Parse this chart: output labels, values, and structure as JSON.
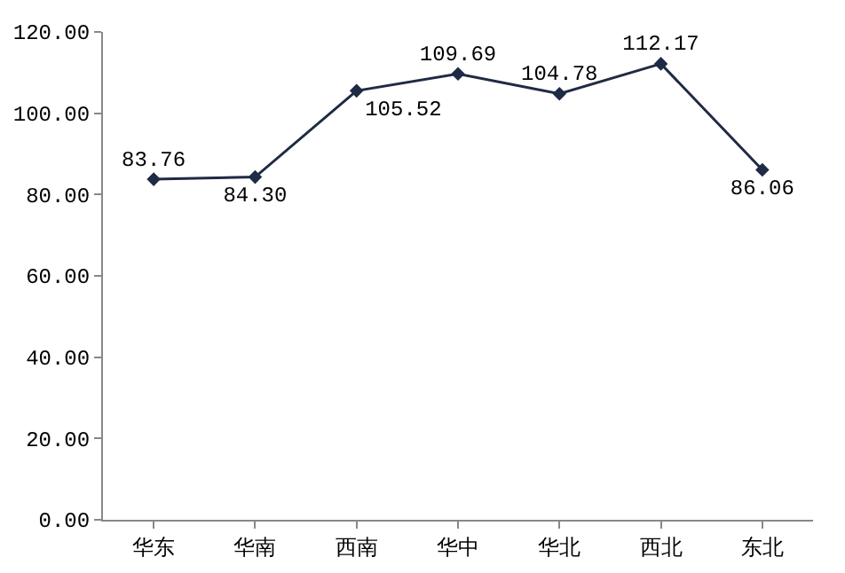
{
  "chart_data": {
    "type": "line",
    "categories": [
      "华东",
      "华南",
      "西南",
      "华中",
      "华北",
      "西北",
      "东北"
    ],
    "series": [
      {
        "color": "#1f2a44",
        "values": [
          83.76,
          84.3,
          105.52,
          109.69,
          104.78,
          112.17,
          86.06
        ],
        "value_labels": [
          "83.76",
          "84.30",
          "105.52",
          "109.69",
          "104.78",
          "112.17",
          "86.06"
        ]
      }
    ],
    "ylim": [
      0,
      120
    ],
    "yticks": [
      {
        "value": 0,
        "label": "0.00"
      },
      {
        "value": 20,
        "label": "20.00"
      },
      {
        "value": 40,
        "label": "40.00"
      },
      {
        "value": 60,
        "label": "60.00"
      },
      {
        "value": 80,
        "label": "80.00"
      },
      {
        "value": 100,
        "label": "100.00"
      },
      {
        "value": 120,
        "label": "120.00"
      }
    ],
    "grid": false,
    "marker": "diamond",
    "line_style": "solid"
  }
}
